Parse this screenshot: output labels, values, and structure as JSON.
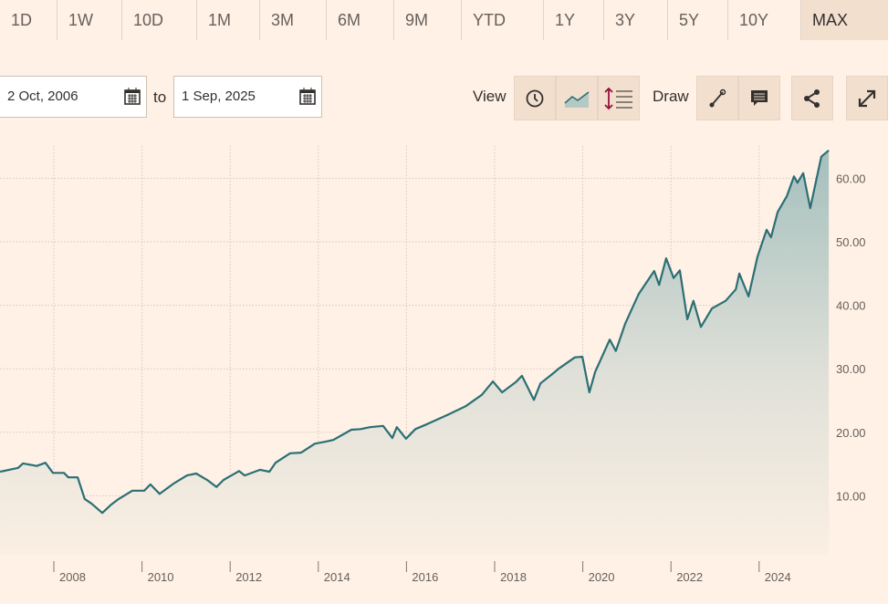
{
  "range_tabs": [
    "1D",
    "1W",
    "10D",
    "1M",
    "3M",
    "6M",
    "9M",
    "YTD",
    "1Y",
    "3Y",
    "5Y",
    "10Y",
    "MAX"
  ],
  "active_tab": "MAX",
  "toolbar": {
    "from_date": "2 Oct, 2006",
    "to_label": "to",
    "to_date": "1 Sep, 2025",
    "view_label": "View",
    "draw_label": "Draw",
    "icons": [
      "calendar-icon",
      "clock-icon",
      "mountain-chart-icon",
      "line-spacing-icon",
      "draw-line-icon",
      "comment-icon",
      "share-icon",
      "expand-icon"
    ]
  },
  "colors": {
    "background": "#fff1e5",
    "line": "#2b6f75",
    "fill_top": "#a4bfbd",
    "active_tab": "#f2dfce"
  },
  "chart_data": {
    "type": "area",
    "x_ticks": [
      "2008",
      "2010",
      "2012",
      "2014",
      "2016",
      "2018",
      "2020",
      "2022",
      "2024"
    ],
    "y_ticks": [
      "10.00",
      "20.00",
      "30.00",
      "40.00",
      "50.00",
      "60.00"
    ],
    "y_tick_values": [
      10,
      20,
      30,
      40,
      50,
      60
    ],
    "x_tick_values": [
      2008,
      2010,
      2012,
      2014,
      2016,
      2018,
      2020,
      2022,
      2024
    ],
    "xlim": [
      2006.76,
      2025.63
    ],
    "ylim": [
      0,
      68
    ],
    "grid": true,
    "y_axis_side": "right",
    "x": [
      2006.78,
      2007.19,
      2007.3,
      2007.61,
      2007.81,
      2007.98,
      2008.23,
      2008.33,
      2008.54,
      2008.7,
      2008.85,
      2009.1,
      2009.3,
      2009.47,
      2009.78,
      2010.05,
      2010.19,
      2010.4,
      2010.71,
      2011.02,
      2011.23,
      2011.5,
      2011.69,
      2011.85,
      2012.2,
      2012.33,
      2012.68,
      2012.89,
      2013.03,
      2013.36,
      2013.61,
      2013.92,
      2014.15,
      2014.34,
      2014.75,
      2014.96,
      2015.17,
      2015.47,
      2015.68,
      2015.78,
      2015.99,
      2016.2,
      2016.47,
      2016.92,
      2017.34,
      2017.71,
      2017.96,
      2018.17,
      2018.48,
      2018.62,
      2018.89,
      2019.04,
      2019.33,
      2019.45,
      2019.82,
      2019.99,
      2020.15,
      2020.28,
      2020.61,
      2020.75,
      2020.96,
      2021.27,
      2021.62,
      2021.73,
      2021.89,
      2022.06,
      2022.2,
      2022.37,
      2022.51,
      2022.68,
      2022.93,
      2023.24,
      2023.47,
      2023.55,
      2023.76,
      2023.96,
      2024.17,
      2024.27,
      2024.42,
      2024.63,
      2024.79,
      2024.87,
      2025.0,
      2025.16,
      2025.41,
      2025.58
    ],
    "y": [
      13.8,
      14.4,
      15.1,
      14.7,
      15.2,
      13.6,
      13.6,
      12.9,
      12.9,
      9.5,
      8.8,
      7.3,
      8.6,
      9.5,
      10.8,
      10.8,
      11.8,
      10.3,
      11.9,
      13.2,
      13.5,
      12.4,
      11.4,
      12.5,
      13.9,
      13.2,
      14.1,
      13.8,
      15.2,
      16.7,
      16.8,
      18.2,
      18.5,
      18.8,
      20.4,
      20.5,
      20.8,
      21.0,
      19.1,
      20.8,
      19.0,
      20.5,
      21.3,
      22.7,
      24.1,
      25.9,
      28.0,
      26.3,
      27.9,
      28.9,
      25.1,
      27.7,
      29.3,
      30.0,
      31.8,
      31.9,
      26.3,
      29.5,
      34.6,
      32.8,
      37.1,
      41.8,
      45.4,
      43.2,
      47.4,
      44.3,
      45.5,
      37.8,
      40.7,
      36.6,
      39.5,
      40.7,
      42.5,
      45.0,
      41.4,
      47.6,
      51.9,
      50.7,
      54.7,
      57.2,
      60.3,
      59.3,
      60.8,
      55.3,
      63.4,
      64.4
    ]
  }
}
